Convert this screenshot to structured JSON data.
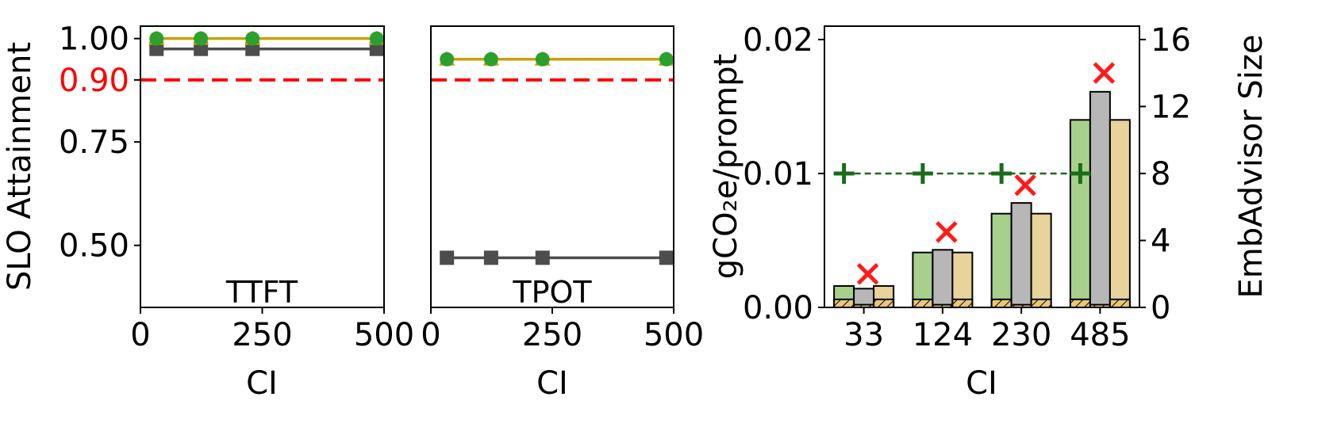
{
  "colors": {
    "green_marker": "#2ca02c",
    "gold_line": "#c9a000",
    "gray_line": "#4d4d4d",
    "slo_line": "#ff0000",
    "bar_green": "#a8d08d",
    "bar_gray": "#b7b7b7",
    "bar_tan": "#e8d49a",
    "hatch_fill": "#e6c77a",
    "x_marker": "#ff1a1a",
    "plus_marker": "#1a6b1a"
  },
  "chart_data": [
    {
      "type": "line",
      "panel_label": "TTFT",
      "ylabel": "SLO Attainment",
      "xlabel": "CI",
      "xlim": [
        0,
        500
      ],
      "ylim": [
        0.35,
        1.03
      ],
      "xticks": [
        0,
        250,
        500
      ],
      "xtick_labels": [
        "0",
        "250",
        "500"
      ],
      "yticks": [
        0.5,
        0.75,
        0.9,
        1.0
      ],
      "ytick_labels": [
        "0.50",
        "0.75",
        "0.90",
        "1.00"
      ],
      "highlight_ytick": "0.90",
      "slo_threshold": 0.9,
      "x": [
        33,
        124,
        230,
        485
      ],
      "series": [
        {
          "color_key": "green_marker",
          "marker": "circle",
          "values": [
            1.0,
            1.0,
            1.0,
            1.0
          ]
        },
        {
          "color_key": "gold_line",
          "marker": "triangle",
          "values": [
            1.0,
            1.0,
            1.0,
            1.0
          ]
        },
        {
          "color_key": "gray_line",
          "marker": "square",
          "values": [
            0.975,
            0.975,
            0.975,
            0.975
          ]
        }
      ]
    },
    {
      "type": "line",
      "panel_label": "TPOT",
      "xlabel": "CI",
      "xlim": [
        0,
        500
      ],
      "ylim": [
        0.35,
        1.03
      ],
      "xticks": [
        0,
        250,
        500
      ],
      "xtick_labels": [
        "0",
        "250",
        "500"
      ],
      "slo_threshold": 0.9,
      "x": [
        33,
        124,
        230,
        485
      ],
      "series": [
        {
          "color_key": "green_marker",
          "marker": "circle",
          "values": [
            0.95,
            0.95,
            0.95,
            0.95
          ]
        },
        {
          "color_key": "gold_line",
          "marker": "triangle",
          "values": [
            0.95,
            0.95,
            0.95,
            0.95
          ]
        },
        {
          "color_key": "gray_line",
          "marker": "square",
          "values": [
            0.47,
            0.47,
            0.47,
            0.47
          ]
        }
      ]
    },
    {
      "type": "bar",
      "ylabel": "gCO₂e/prompt",
      "ylabel2": "EmbAdvisor Size",
      "xlabel": "CI",
      "categories": [
        "33",
        "124",
        "230",
        "485"
      ],
      "ylim": [
        0,
        0.021
      ],
      "yticks": [
        0.0,
        0.01,
        0.02
      ],
      "ytick_labels": [
        "0.00",
        "0.01",
        "0.02"
      ],
      "ylim2": [
        0,
        16.8
      ],
      "yticks2": [
        0,
        4,
        8,
        12,
        16
      ],
      "ytick_labels2": [
        "0",
        "4",
        "8",
        "12",
        "16"
      ],
      "series": [
        {
          "color_key": "bar_green",
          "values": [
            0.0016,
            0.0041,
            0.007,
            0.014
          ],
          "hatched_part": [
            0.0006,
            0.0006,
            0.0006,
            0.0006
          ]
        },
        {
          "color_key": "bar_gray",
          "values": [
            0.0014,
            0.0043,
            0.0078,
            0.0161
          ],
          "hatched_part": [
            0.0002,
            0.0002,
            0.0002,
            0.0002
          ]
        },
        {
          "color_key": "bar_tan",
          "values": [
            0.0016,
            0.0041,
            0.007,
            0.014
          ],
          "hatched_part": [
            0.0006,
            0.0006,
            0.0006,
            0.0006
          ]
        }
      ],
      "size_x_markers": [
        2.0,
        4.5,
        7.3,
        14.0
      ],
      "size_plus_markers": [
        8,
        8,
        8,
        8
      ]
    }
  ]
}
